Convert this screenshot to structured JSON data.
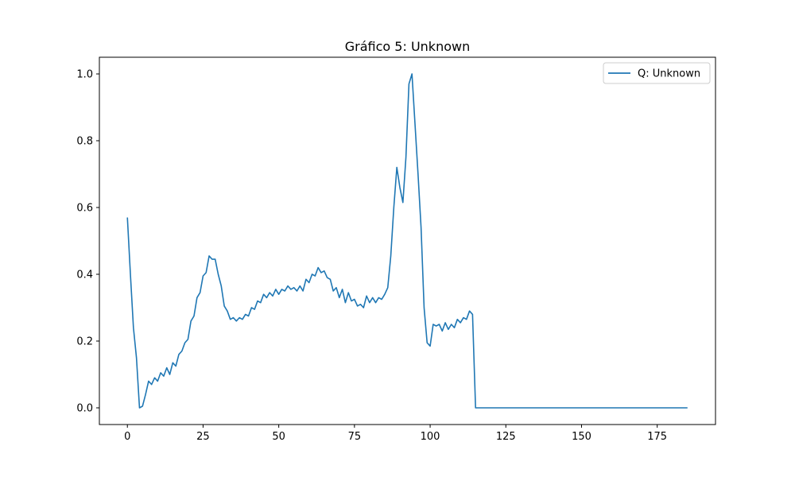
{
  "chart_data": {
    "type": "line",
    "title": "Gráfico 5: Unknown",
    "xlabel": "",
    "ylabel": "",
    "xlim": [
      -9.25,
      194.25
    ],
    "ylim": [
      -0.05,
      1.05
    ],
    "xticks": [
      0,
      25,
      50,
      75,
      100,
      125,
      150,
      175
    ],
    "yticks": [
      0.0,
      0.2,
      0.4,
      0.6,
      0.8,
      1.0
    ],
    "legend_position": "top-right",
    "grid": false,
    "series": [
      {
        "name": "Q: Unknown",
        "color": "#1f77b4",
        "x": [
          0,
          1,
          2,
          3,
          4,
          5,
          6,
          7,
          8,
          9,
          10,
          11,
          12,
          13,
          14,
          15,
          16,
          17,
          18,
          19,
          20,
          21,
          22,
          23,
          24,
          25,
          26,
          27,
          28,
          29,
          30,
          31,
          32,
          33,
          34,
          35,
          36,
          37,
          38,
          39,
          40,
          41,
          42,
          43,
          44,
          45,
          46,
          47,
          48,
          49,
          50,
          51,
          52,
          53,
          54,
          55,
          56,
          57,
          58,
          59,
          60,
          61,
          62,
          63,
          64,
          65,
          66,
          67,
          68,
          69,
          70,
          71,
          72,
          73,
          74,
          75,
          76,
          77,
          78,
          79,
          80,
          81,
          82,
          83,
          84,
          85,
          86,
          87,
          88,
          89,
          90,
          91,
          92,
          93,
          94,
          95,
          96,
          97,
          98,
          99,
          100,
          101,
          102,
          103,
          104,
          105,
          106,
          107,
          108,
          109,
          110,
          111,
          112,
          113,
          114,
          115,
          185
        ],
        "y": [
          0.57,
          0.4,
          0.24,
          0.15,
          0.0,
          0.005,
          0.04,
          0.08,
          0.07,
          0.09,
          0.08,
          0.105,
          0.095,
          0.12,
          0.1,
          0.135,
          0.125,
          0.16,
          0.17,
          0.195,
          0.205,
          0.26,
          0.275,
          0.33,
          0.345,
          0.395,
          0.405,
          0.455,
          0.445,
          0.445,
          0.4,
          0.365,
          0.305,
          0.29,
          0.265,
          0.27,
          0.26,
          0.27,
          0.265,
          0.28,
          0.275,
          0.3,
          0.295,
          0.32,
          0.315,
          0.34,
          0.33,
          0.345,
          0.335,
          0.355,
          0.34,
          0.355,
          0.35,
          0.365,
          0.355,
          0.36,
          0.35,
          0.365,
          0.35,
          0.385,
          0.375,
          0.4,
          0.395,
          0.42,
          0.405,
          0.41,
          0.39,
          0.385,
          0.35,
          0.36,
          0.33,
          0.355,
          0.315,
          0.345,
          0.32,
          0.325,
          0.305,
          0.31,
          0.3,
          0.335,
          0.315,
          0.33,
          0.315,
          0.33,
          0.325,
          0.34,
          0.36,
          0.455,
          0.6,
          0.72,
          0.66,
          0.615,
          0.75,
          0.97,
          1.0,
          0.85,
          0.7,
          0.54,
          0.3,
          0.195,
          0.185,
          0.25,
          0.245,
          0.25,
          0.23,
          0.255,
          0.235,
          0.25,
          0.24,
          0.265,
          0.255,
          0.27,
          0.265,
          0.29,
          0.28,
          0.0,
          0.0
        ]
      }
    ]
  }
}
